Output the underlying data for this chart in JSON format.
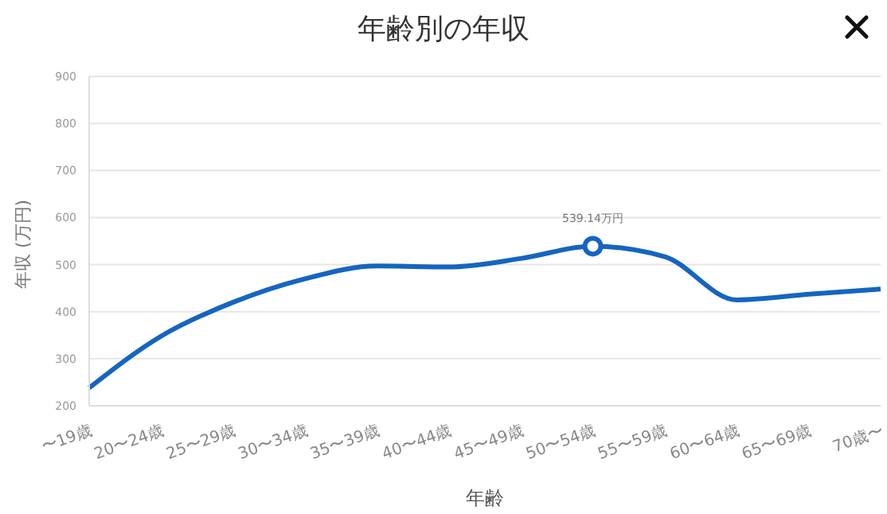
{
  "chart_data": {
    "type": "line",
    "title": "年齢別の年収",
    "xlabel": "年齢",
    "ylabel": "年収 (万円)",
    "categories": [
      "〜19歳",
      "20〜24歳",
      "25〜29歳",
      "30〜34歳",
      "35〜39歳",
      "40〜44歳",
      "45〜49歳",
      "50〜54歳",
      "55〜59歳",
      "60〜64歳",
      "65〜69歳",
      "70歳〜"
    ],
    "series": [
      {
        "color": "#1565c0",
        "values": [
          238,
          348,
          420,
          470,
          497,
          495,
          513,
          539.14,
          517,
          425,
          437,
          448
        ]
      }
    ],
    "annotations": [
      {
        "text": "539.14万円",
        "x": "50〜54歳",
        "y": 539.14
      }
    ],
    "ylim": [
      200,
      900
    ],
    "yticks": [
      200,
      300,
      400,
      500,
      600,
      700,
      800,
      900
    ],
    "grid": "y",
    "legend": false,
    "marker": "none",
    "line_style": "solid"
  }
}
